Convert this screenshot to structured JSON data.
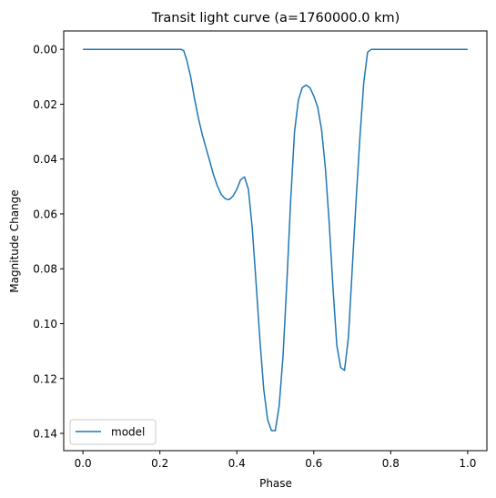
{
  "chart_data": {
    "type": "line",
    "title": "Transit light curve (a=1760000.0 km)",
    "xlabel": "Phase",
    "ylabel": "Magnitude Change",
    "xlim": [
      -0.05,
      1.05
    ],
    "ylim": [
      0.1463,
      -0.0067
    ],
    "y_inverted": true,
    "x_ticks": [
      "0.0",
      "0.2",
      "0.4",
      "0.6",
      "0.8",
      "1.0"
    ],
    "y_ticks": [
      "0.00",
      "0.02",
      "0.04",
      "0.06",
      "0.08",
      "0.10",
      "0.12",
      "0.14"
    ],
    "grid": false,
    "legend_position": "lower-left",
    "series": [
      {
        "name": "model",
        "color": "#1f77b4",
        "x": [
          0.0,
          0.1,
          0.2,
          0.255,
          0.262,
          0.27,
          0.28,
          0.29,
          0.3,
          0.31,
          0.32,
          0.33,
          0.34,
          0.35,
          0.36,
          0.37,
          0.38,
          0.39,
          0.4,
          0.41,
          0.42,
          0.43,
          0.44,
          0.45,
          0.46,
          0.47,
          0.48,
          0.49,
          0.5,
          0.51,
          0.52,
          0.53,
          0.54,
          0.55,
          0.56,
          0.57,
          0.58,
          0.59,
          0.6,
          0.61,
          0.62,
          0.63,
          0.64,
          0.65,
          0.66,
          0.67,
          0.68,
          0.69,
          0.7,
          0.71,
          0.72,
          0.73,
          0.74,
          0.75,
          0.8,
          0.9,
          1.0
        ],
        "y": [
          0.0,
          0.0,
          0.0,
          0.0,
          0.0005,
          0.004,
          0.01,
          0.018,
          0.025,
          0.031,
          0.036,
          0.041,
          0.046,
          0.05,
          0.053,
          0.0545,
          0.0548,
          0.0535,
          0.051,
          0.0475,
          0.0465,
          0.051,
          0.065,
          0.085,
          0.106,
          0.124,
          0.135,
          0.139,
          0.139,
          0.13,
          0.112,
          0.085,
          0.055,
          0.03,
          0.0185,
          0.014,
          0.013,
          0.014,
          0.017,
          0.021,
          0.029,
          0.043,
          0.063,
          0.087,
          0.108,
          0.116,
          0.117,
          0.105,
          0.08,
          0.055,
          0.032,
          0.012,
          0.001,
          0.0,
          0.0,
          0.0,
          0.0
        ]
      }
    ]
  }
}
